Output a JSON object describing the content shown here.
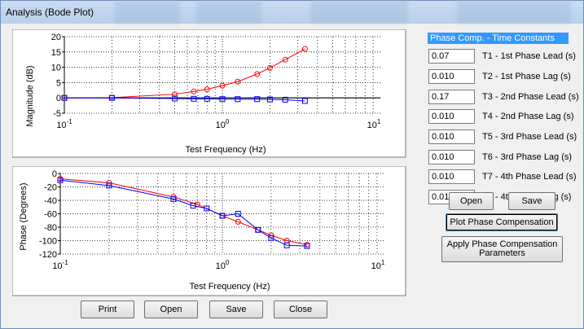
{
  "window": {
    "title": "Analysis (Bode Plot)",
    "accent": "#3399ff"
  },
  "magnitude_plot": {
    "ylabel": "Magnitude (dB)",
    "xlabel": "Test Frequency (Hz)",
    "yticks": [
      "20",
      "15",
      "10",
      "5",
      "0",
      "-5"
    ],
    "xticks": [
      {
        "base": "10",
        "exp": "-1"
      },
      {
        "base": "10",
        "exp": "0"
      },
      {
        "base": "10",
        "exp": "1"
      }
    ]
  },
  "phase_plot": {
    "ylabel": "Phase (Degrees)",
    "xlabel": "Test Frequency (Hz)",
    "yticks": [
      "0",
      "-20",
      "-40",
      "-60",
      "-80",
      "-100",
      "-120"
    ],
    "xticks": [
      {
        "base": "10",
        "exp": "-1"
      },
      {
        "base": "10",
        "exp": "0"
      },
      {
        "base": "10",
        "exp": "1"
      }
    ]
  },
  "chart_data": [
    {
      "type": "line",
      "xlabel": "Test Frequency (Hz)",
      "ylabel": "Magnitude (dB)",
      "xscale": "log",
      "xlim": [
        0.1,
        10
      ],
      "ylim": [
        -5,
        20
      ],
      "grid": true,
      "series": [
        {
          "color": "#ff0000",
          "marker": "circle",
          "x": [
            0.1,
            0.2,
            0.5,
            0.66,
            0.8,
            1.0,
            1.25,
            1.66,
            2.0,
            2.5,
            3.33
          ],
          "y": [
            0,
            0.1,
            1.2,
            2.1,
            2.8,
            4.0,
            5.3,
            7.8,
            9.8,
            12.5,
            16.0
          ]
        },
        {
          "color": "#0000ff",
          "marker": "square",
          "x": [
            0.1,
            0.2,
            0.5,
            0.66,
            0.8,
            1.0,
            1.25,
            1.66,
            2.0,
            2.5,
            3.33
          ],
          "y": [
            0,
            0,
            -0.2,
            -0.3,
            -0.3,
            -0.4,
            -0.4,
            -0.4,
            -0.5,
            -0.6,
            -1.0
          ]
        }
      ]
    },
    {
      "type": "line",
      "xlabel": "Test Frequency (Hz)",
      "ylabel": "Phase (Degrees)",
      "xscale": "log",
      "xlim": [
        0.1,
        10
      ],
      "ylim": [
        -120,
        0
      ],
      "grid": true,
      "series": [
        {
          "color": "#ff0000",
          "marker": "circle",
          "x": [
            0.1,
            0.2,
            0.5,
            0.7,
            1.0,
            1.25,
            1.66,
            2.0,
            2.5,
            3.33
          ],
          "y": [
            -8,
            -14,
            -35,
            -46,
            -63,
            -72,
            -84,
            -92,
            -100,
            -106
          ]
        },
        {
          "color": "#0000ff",
          "marker": "square",
          "x": [
            0.1,
            0.2,
            0.5,
            0.66,
            0.8,
            1.0,
            1.25,
            1.66,
            2.0,
            2.5,
            3.33
          ],
          "y": [
            -10,
            -18,
            -38,
            -48,
            -52,
            -63,
            -60,
            -84,
            -96,
            -107,
            -108
          ]
        }
      ]
    }
  ],
  "time_constants": {
    "header": "Phase Comp. - Time Constants",
    "rows": [
      {
        "value": "0.07",
        "label": "T1 - 1st Phase Lead (s)"
      },
      {
        "value": "0.010",
        "label": "T2 - 1st Phase Lag (s)"
      },
      {
        "value": "0.17",
        "label": "T3 - 2nd Phase Lead (s)"
      },
      {
        "value": "0.010",
        "label": "T4 - 2nd Phase Lag (s)"
      },
      {
        "value": "0.010",
        "label": "T5 - 3rd Phase Lead (s)"
      },
      {
        "value": "0.010",
        "label": "T6 - 3rd Phase Lag (s)"
      },
      {
        "value": "0.010",
        "label": "T7 - 4th Phase Lead (s)"
      },
      {
        "value": "0.010",
        "label": "T8 - 4th Phase Lag (s)"
      }
    ]
  },
  "buttons": {
    "tc_open": "Open",
    "tc_save": "Save",
    "plot_comp": "Plot Phase Compensation",
    "apply_comp": "Apply Phase Compensation Parameters",
    "print": "Print",
    "open": "Open",
    "save": "Save",
    "close": "Close"
  }
}
